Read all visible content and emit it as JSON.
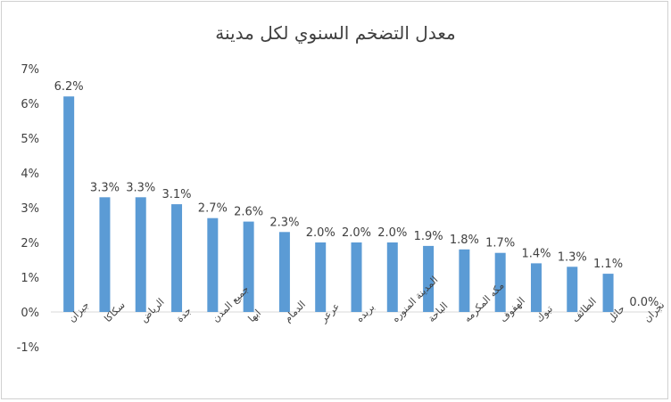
{
  "chart_data": {
    "type": "bar",
    "title": "معدل التضخم السنوي لكل مدينة",
    "xlabel": "",
    "ylabel": "",
    "ylim": [
      -1,
      7
    ],
    "y_ticks": [
      "-1%",
      "0%",
      "1%",
      "2%",
      "3%",
      "4%",
      "5%",
      "6%",
      "7%"
    ],
    "y_tick_values": [
      -1,
      0,
      1,
      2,
      3,
      4,
      5,
      6,
      7
    ],
    "grid": false,
    "legend": "none",
    "bar_color": "#5b9bd5",
    "categories": [
      "جيزان",
      "سكاكا",
      "الرياض",
      "جدة",
      "جميع المدن",
      "ابها",
      "الدمام",
      "عرعر",
      "بريده",
      "المدينة المنوره",
      "الباحة",
      "مكه المكرمه",
      "الهفوف",
      "تبوك",
      "الطائف",
      "حائل",
      "نجران"
    ],
    "values": [
      6.2,
      3.3,
      3.3,
      3.1,
      2.7,
      2.6,
      2.3,
      2.0,
      2.0,
      2.0,
      1.9,
      1.8,
      1.7,
      1.4,
      1.3,
      1.1,
      0.0
    ],
    "data_labels": [
      "6.2%",
      "3.3%",
      "3.3%",
      "3.1%",
      "2.7%",
      "2.6%",
      "2.3%",
      "2.0%",
      "2.0%",
      "2.0%",
      "1.9%",
      "1.8%",
      "1.7%",
      "1.4%",
      "1.3%",
      "1.1%",
      "0.0%"
    ]
  }
}
